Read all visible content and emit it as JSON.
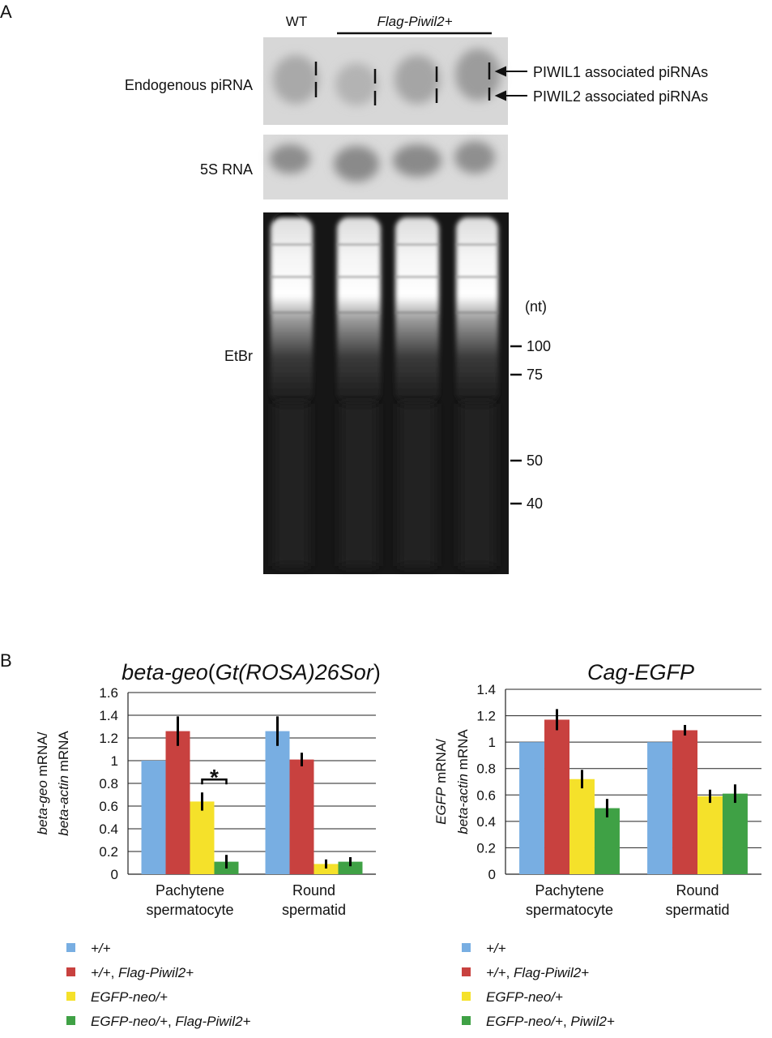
{
  "panel_a": {
    "letter": "A",
    "lane_wt": "WT",
    "lane_group": "Flag-Piwil2+",
    "row_labels": [
      "Endogenous piRNA",
      "5S RNA",
      "EtBr"
    ],
    "arrow_labels": [
      "PIWIL1 associated piRNAs",
      "PIWIL2 associated piRNAs"
    ],
    "nt_unit": "(nt)",
    "markers": [
      "100",
      "75",
      "50",
      "40"
    ]
  },
  "panel_b": {
    "letter": "B"
  },
  "chart_data": [
    {
      "type": "bar",
      "title_parts": [
        {
          "text": "beta-geo",
          "italic": true
        },
        {
          "text": "(",
          "italic": false
        },
        {
          "text": "Gt(ROSA)26Sor",
          "italic": true
        },
        {
          "text": ")",
          "italic": false
        }
      ],
      "ylabel_line1": [
        {
          "text": "beta-geo",
          "italic": true
        },
        {
          "text": " mRNA/",
          "italic": false
        }
      ],
      "ylabel_line2": [
        {
          "text": "beta-actin",
          "italic": true
        },
        {
          "text": " mRNA",
          "italic": false
        }
      ],
      "ylim": [
        0,
        1.6
      ],
      "yticks": [
        "0",
        "0.2",
        "0.4",
        "0.6",
        "0.8",
        "1",
        "1.2",
        "1.4",
        "1.6"
      ],
      "grid": true,
      "categories": [
        [
          "Pachytene",
          "spermatocyte"
        ],
        [
          "Round",
          "spermatid"
        ]
      ],
      "series": [
        {
          "values": [
            1.0,
            1.26
          ],
          "errors": [
            0,
            0.13
          ],
          "color": "#78aee2"
        },
        {
          "values": [
            1.26,
            1.01
          ],
          "errors": [
            0.13,
            0.06
          ],
          "color": "#c8413f"
        },
        {
          "values": [
            0.64,
            0.09
          ],
          "errors": [
            0.08,
            0.04
          ],
          "color": "#f5e12a"
        },
        {
          "values": [
            0.11,
            0.11
          ],
          "errors": [
            0.06,
            0.04
          ],
          "color": "#3fa145"
        }
      ],
      "significance": "*",
      "legend": [
        [
          {
            "text": "+/+",
            "italic": true
          }
        ],
        [
          {
            "text": "+/+",
            "italic": true
          },
          {
            "text": ", ",
            "italic": false
          },
          {
            "text": "Flag-Piwil2+",
            "italic": true
          }
        ],
        [
          {
            "text": "EGFP-neo/+",
            "italic": true
          }
        ],
        [
          {
            "text": "EGFP-neo/+",
            "italic": true
          },
          {
            "text": ", ",
            "italic": false
          },
          {
            "text": "Flag-Piwil2+",
            "italic": true
          }
        ]
      ],
      "legend_placement": "bottom"
    },
    {
      "type": "bar",
      "title_parts": [
        {
          "text": "Cag-EGFP",
          "italic": true
        }
      ],
      "ylabel_line1": [
        {
          "text": "EGFP",
          "italic": true
        },
        {
          "text": " mRNA/",
          "italic": false
        }
      ],
      "ylabel_line2": [
        {
          "text": "beta-actin",
          "italic": true
        },
        {
          "text": " mRNA",
          "italic": false
        }
      ],
      "ylim": [
        0,
        1.4
      ],
      "yticks": [
        "0",
        "0.2",
        "0.4",
        "0.6",
        "0.8",
        "1",
        "1.2",
        "1.4"
      ],
      "grid": true,
      "categories": [
        [
          "Pachytene",
          "spermatocyte"
        ],
        [
          "Round",
          "spermatid"
        ]
      ],
      "series": [
        {
          "values": [
            1.0,
            1.0
          ],
          "errors": [
            0,
            0
          ],
          "color": "#78aee2"
        },
        {
          "values": [
            1.17,
            1.09
          ],
          "errors": [
            0.08,
            0.04
          ],
          "color": "#c8413f"
        },
        {
          "values": [
            0.72,
            0.59
          ],
          "errors": [
            0.07,
            0.05
          ],
          "color": "#f5e12a"
        },
        {
          "values": [
            0.5,
            0.61
          ],
          "errors": [
            0.07,
            0.07
          ],
          "color": "#3fa145"
        }
      ],
      "legend": [
        [
          {
            "text": "+/+",
            "italic": true
          }
        ],
        [
          {
            "text": "+/+",
            "italic": true
          },
          {
            "text": ", ",
            "italic": false
          },
          {
            "text": "Flag-Piwil2+",
            "italic": true
          }
        ],
        [
          {
            "text": "EGFP-neo/+",
            "italic": true
          }
        ],
        [
          {
            "text": "EGFP-neo/+",
            "italic": true
          },
          {
            "text": ", ",
            "italic": false
          },
          {
            "text": "Piwil2+",
            "italic": true
          }
        ]
      ],
      "legend_placement": "bottom"
    }
  ]
}
